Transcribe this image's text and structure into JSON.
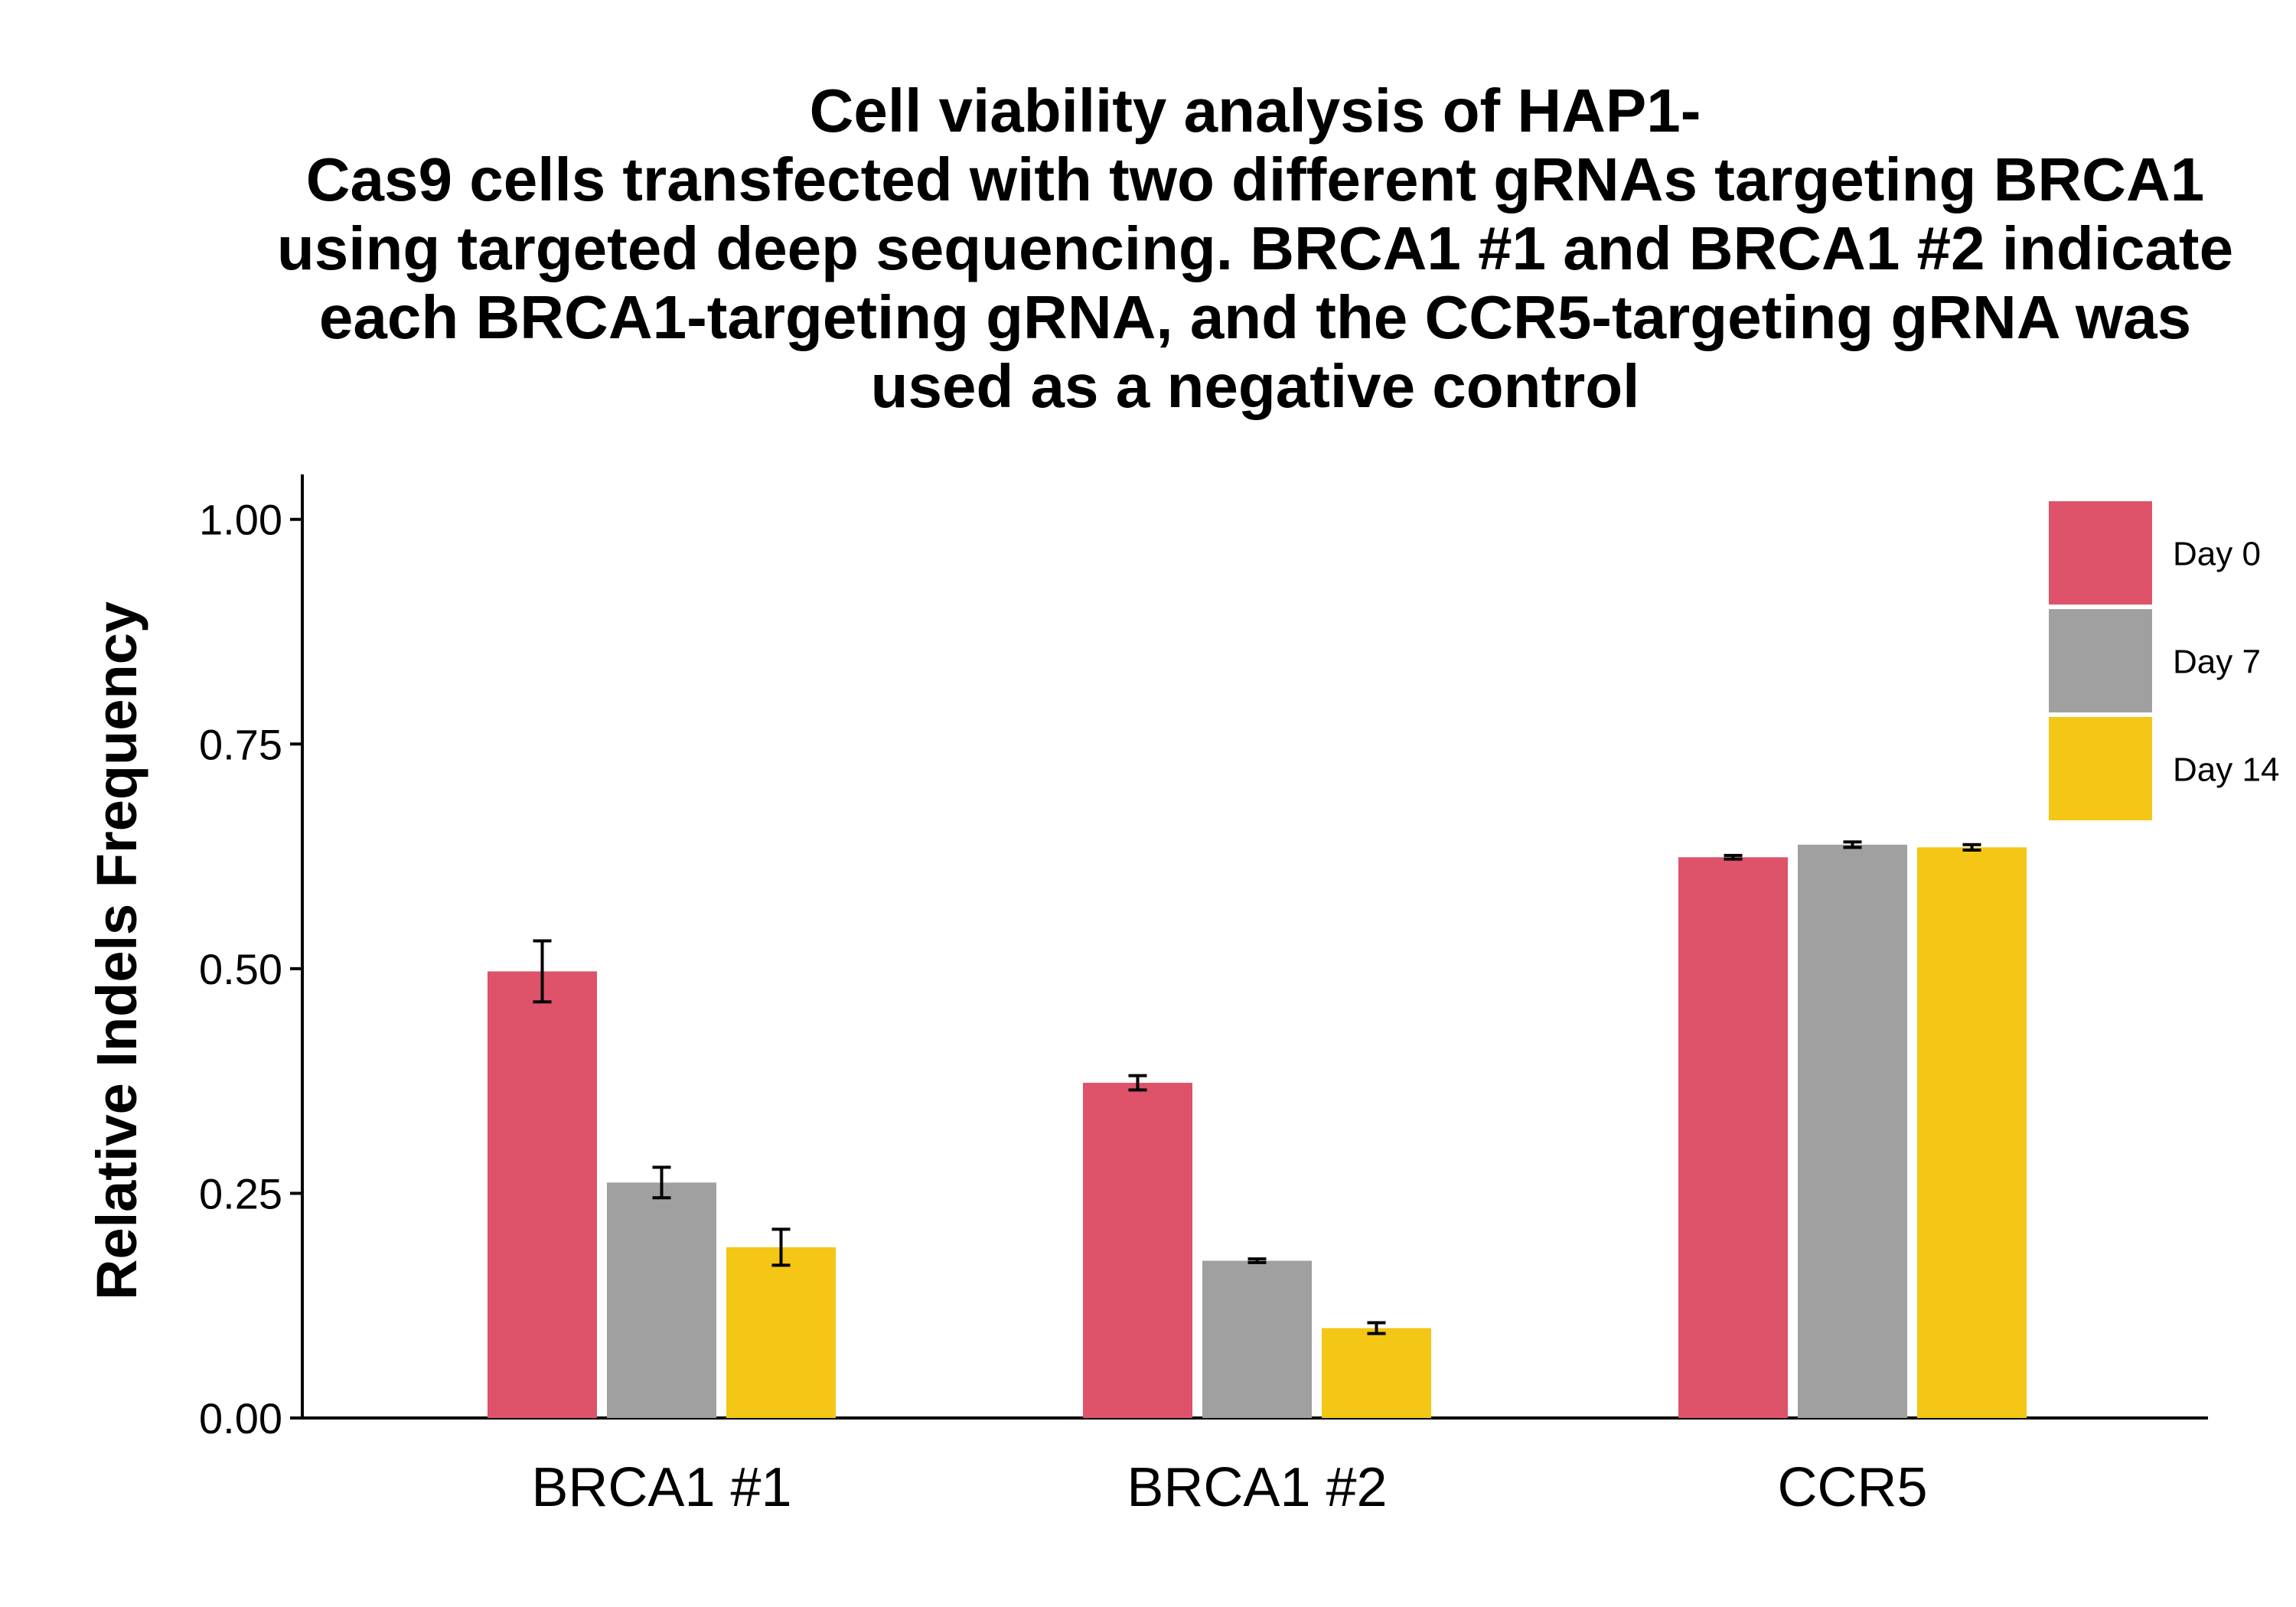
{
  "chart_data": {
    "type": "bar",
    "title_lines": [
      "Cell viability analysis of HAP1-",
      "Cas9 cells transfected with two different gRNAs targeting BRCA1",
      "using targeted deep sequencing. BRCA1 #1 and BRCA1 #2 indicate",
      "each BRCA1-targeting gRNA, and the CCR5-targeting gRNA was",
      "used as a negative control"
    ],
    "xlabel": "",
    "ylabel": "Relative Indels Frequency",
    "categories": [
      "BRCA1 #1",
      "BRCA1 #2",
      "CCR5"
    ],
    "ylim": [
      0,
      1.05
    ],
    "yticks": [
      "0.00",
      "0.25",
      "0.50",
      "0.75",
      "1.00"
    ],
    "series": [
      {
        "name": "Day 0",
        "color": "#de536a",
        "values": [
          0.497,
          0.373,
          0.624
        ],
        "errors": [
          0.034,
          0.008,
          0.002
        ]
      },
      {
        "name": "Day 7",
        "color": "#a0a0a0",
        "values": [
          0.262,
          0.175,
          0.638
        ],
        "errors": [
          0.017,
          0.002,
          0.003
        ]
      },
      {
        "name": "Day 14",
        "color": "#f4c615",
        "values": [
          0.19,
          0.1,
          0.635
        ],
        "errors": [
          0.02,
          0.006,
          0.003
        ]
      }
    ],
    "grid": false,
    "legend_position": "top-right"
  }
}
